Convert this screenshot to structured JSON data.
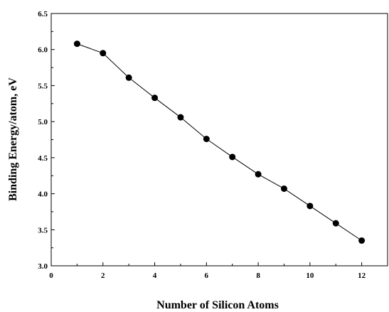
{
  "chart_data": {
    "type": "line",
    "title": "",
    "xlabel": "Number of Silicon Atoms",
    "ylabel": "Binding Energy/atom,   eV",
    "xlim": [
      0,
      13
    ],
    "ylim": [
      3.0,
      6.5
    ],
    "x_ticks": [
      0,
      2,
      4,
      6,
      8,
      10,
      12
    ],
    "y_ticks": [
      3.0,
      3.5,
      4.0,
      4.5,
      5.0,
      5.5,
      6.0,
      6.5
    ],
    "x_tick_labels": [
      "0",
      "2",
      "4",
      "6",
      "8",
      "10",
      "12"
    ],
    "y_tick_labels": [
      "3.0",
      "3.5",
      "4.0",
      "4.5",
      "5.0",
      "5.5",
      "6.0",
      "6.5"
    ],
    "grid": false,
    "legend": "none",
    "marker": "filled-circle",
    "line_color": "#000000",
    "series": [
      {
        "x": [
          1,
          2,
          3,
          4,
          5,
          6,
          7,
          8,
          9,
          10,
          11,
          12
        ],
        "y": [
          6.08,
          5.95,
          5.61,
          5.33,
          5.06,
          4.76,
          4.51,
          4.27,
          4.07,
          3.83,
          3.59,
          3.35
        ]
      }
    ]
  }
}
